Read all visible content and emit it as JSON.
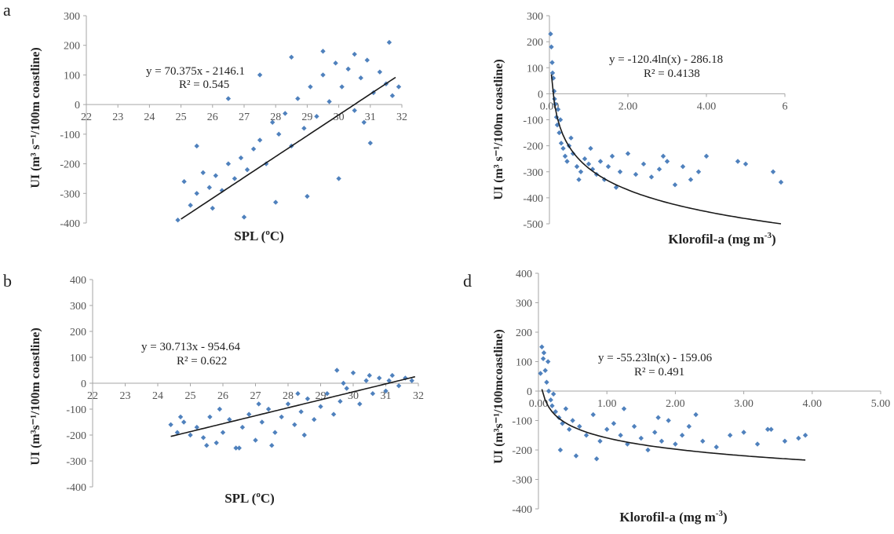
{
  "figure": {
    "panel_letters": [
      "a",
      "b",
      "d"
    ]
  },
  "chart_data": [
    {
      "type": "scatter",
      "panel_letter": "a",
      "xlabel_main": "SPL (",
      "xlabel_unit_sup": "o",
      "xlabel_unit_end": "C)",
      "ylabel": "UI (m³ s⁻¹/100m coastline)",
      "x_ticks": [
        "22",
        "23",
        "24",
        "25",
        "26",
        "27",
        "28",
        "29",
        "30",
        "31",
        "32"
      ],
      "y_ticks": [
        "300",
        "200",
        "100",
        "0",
        "-100",
        "-200",
        "-300",
        "-400"
      ],
      "xlim": [
        22,
        32
      ],
      "ylim": [
        -400,
        300
      ],
      "point_color": "#4f81bd",
      "trendline": {
        "kind": "linear",
        "slope": 70.375,
        "intercept": -2146.1,
        "x_range": [
          25.0,
          31.8
        ]
      },
      "equation": "y = 70.375x - 2146.1",
      "r_squared": "R² = 0.545",
      "series": [
        {
          "x": [
            24.9,
            25.1,
            25.3,
            25.5,
            25.7,
            25.9,
            26.1,
            26.3,
            26.5,
            26.7,
            26.9,
            27.1,
            27.3,
            27.5,
            27.7,
            27.9,
            28.1,
            28.3,
            28.5,
            28.7,
            28.9,
            29.1,
            29.3,
            29.5,
            29.7,
            29.9,
            30.1,
            30.3,
            30.5,
            30.7,
            30.9,
            31.1,
            31.3,
            31.5,
            31.7,
            31.9,
            26.0,
            27.0,
            28.0,
            29.0,
            30.0,
            31.0,
            29.5,
            30.5,
            28.5,
            27.5,
            26.5,
            25.5,
            31.6,
            30.8
          ],
          "y": [
            -390,
            -260,
            -340,
            -300,
            -230,
            -280,
            -240,
            -290,
            -200,
            -250,
            -180,
            -220,
            -150,
            -120,
            -200,
            -60,
            -100,
            -30,
            -140,
            20,
            -80,
            60,
            -40,
            100,
            10,
            140,
            60,
            120,
            -20,
            90,
            150,
            40,
            110,
            70,
            30,
            60,
            -350,
            -380,
            -330,
            -310,
            -250,
            -130,
            180,
            170,
            160,
            100,
            20,
            -140,
            210,
            -60
          ]
        }
      ]
    },
    {
      "type": "scatter",
      "panel_letter": "",
      "xlabel_main": "Klorofil-a (mg m",
      "xlabel_unit_sup": "-3",
      "xlabel_unit_end": ")",
      "ylabel": "UI (m³ s⁻¹/100m coastline)",
      "x_ticks": [
        "0.00",
        "2.00",
        "4.00",
        "6"
      ],
      "y_ticks": [
        "300",
        "200",
        "100",
        "0",
        "-100",
        "-200",
        "-300",
        "-400",
        "-500"
      ],
      "xlim": [
        0,
        6
      ],
      "ylim": [
        -500,
        300
      ],
      "point_color": "#4f81bd",
      "trendline": {
        "kind": "log",
        "a": -120.4,
        "b": -286.18,
        "x_range": [
          0.05,
          5.9
        ]
      },
      "equation": "y = -120.4ln(x) - 286.18",
      "r_squared": "R² = 0.4138",
      "series": [
        {
          "x": [
            0.03,
            0.05,
            0.07,
            0.1,
            0.12,
            0.15,
            0.18,
            0.2,
            0.25,
            0.3,
            0.35,
            0.4,
            0.45,
            0.5,
            0.6,
            0.7,
            0.8,
            0.9,
            1.0,
            1.1,
            1.2,
            1.3,
            1.4,
            1.5,
            1.6,
            1.8,
            2.0,
            2.2,
            2.4,
            2.6,
            2.8,
            3.0,
            3.2,
            3.4,
            3.6,
            3.8,
            4.0,
            4.8,
            5.0,
            5.7,
            5.9,
            0.08,
            0.13,
            0.22,
            0.28,
            0.55,
            0.75,
            1.05,
            1.7,
            2.9
          ],
          "y": [
            230,
            180,
            120,
            60,
            10,
            -40,
            -90,
            -120,
            -150,
            -190,
            -210,
            -240,
            -260,
            -200,
            -230,
            -280,
            -300,
            -250,
            -270,
            -290,
            -310,
            -260,
            -330,
            -280,
            -240,
            -300,
            -230,
            -310,
            -270,
            -320,
            -290,
            -260,
            -350,
            -280,
            -330,
            -300,
            -240,
            -260,
            -270,
            -300,
            -340,
            80,
            -20,
            -60,
            -100,
            -170,
            -330,
            -210,
            -360,
            -240
          ]
        }
      ]
    },
    {
      "type": "scatter",
      "panel_letter": "b",
      "xlabel_main": "SPL (",
      "xlabel_unit_sup": "o",
      "xlabel_unit_end": "C)",
      "ylabel": "UI (m³s⁻¹/100m coastline)",
      "x_ticks": [
        "22",
        "23",
        "24",
        "25",
        "26",
        "27",
        "28",
        "29",
        "30",
        "31",
        "32"
      ],
      "y_ticks": [
        "400",
        "300",
        "200",
        "100",
        "0",
        "-100",
        "-200",
        "-300",
        "-400"
      ],
      "xlim": [
        22,
        32
      ],
      "ylim": [
        -400,
        400
      ],
      "point_color": "#4f81bd",
      "trendline": {
        "kind": "linear",
        "slope": 30.713,
        "intercept": -954.64,
        "x_range": [
          24.4,
          31.9
        ]
      },
      "equation": "y = 30.713x - 954.64",
      "r_squared": "R² = 0.622",
      "series": [
        {
          "x": [
            24.4,
            24.6,
            24.8,
            25.0,
            25.2,
            25.4,
            25.6,
            25.8,
            26.0,
            26.2,
            26.4,
            26.6,
            26.8,
            27.0,
            27.2,
            27.4,
            27.6,
            27.8,
            28.0,
            28.2,
            28.4,
            28.6,
            28.8,
            29.0,
            29.2,
            29.4,
            29.6,
            29.8,
            30.0,
            30.2,
            30.4,
            30.6,
            30.8,
            31.0,
            31.2,
            31.4,
            31.6,
            31.8,
            25.5,
            26.5,
            27.5,
            28.5,
            29.5,
            30.5,
            24.7,
            25.9,
            27.1,
            28.3,
            29.7,
            31.1
          ],
          "y": [
            -160,
            -190,
            -150,
            -200,
            -170,
            -210,
            -130,
            -230,
            -190,
            -140,
            -250,
            -170,
            -120,
            -220,
            -150,
            -100,
            -190,
            -130,
            -80,
            -160,
            -110,
            -60,
            -140,
            -90,
            -40,
            -120,
            -70,
            -20,
            40,
            -80,
            10,
            -40,
            20,
            -30,
            30,
            -10,
            20,
            10,
            -240,
            -250,
            -240,
            -200,
            50,
            30,
            -130,
            -100,
            -80,
            -40,
            0,
            10
          ]
        }
      ]
    },
    {
      "type": "scatter",
      "panel_letter": "d",
      "xlabel_main": "Klorofil-a (mg m",
      "xlabel_unit_sup": "-3",
      "xlabel_unit_end": ")",
      "ylabel": "UI (m³s⁻¹/100mcoastline)",
      "x_ticks": [
        "0.00",
        "1.00",
        "2.00",
        "3.00",
        "4.00",
        "5.00"
      ],
      "y_ticks": [
        "400",
        "300",
        "200",
        "100",
        "0",
        "-100",
        "-200",
        "-300",
        "-400"
      ],
      "xlim": [
        0,
        5
      ],
      "ylim": [
        -400,
        400
      ],
      "point_color": "#4f81bd",
      "trendline": {
        "kind": "log",
        "a": -55.23,
        "b": -159.06,
        "x_range": [
          0.05,
          3.9
        ]
      },
      "equation": "y = -55.23ln(x) - 159.06",
      "r_squared": "R² = 0.491",
      "series": [
        {
          "x": [
            0.03,
            0.05,
            0.07,
            0.1,
            0.12,
            0.15,
            0.18,
            0.2,
            0.25,
            0.3,
            0.35,
            0.4,
            0.45,
            0.5,
            0.6,
            0.7,
            0.8,
            0.9,
            1.0,
            1.1,
            1.2,
            1.3,
            1.4,
            1.5,
            1.6,
            1.7,
            1.8,
            1.9,
            2.0,
            2.1,
            2.2,
            2.4,
            2.6,
            2.8,
            3.0,
            3.2,
            3.4,
            3.6,
            3.8,
            3.9,
            0.08,
            0.14,
            0.22,
            0.32,
            0.55,
            0.85,
            1.25,
            1.75,
            2.3,
            3.35
          ],
          "y": [
            60,
            150,
            110,
            70,
            30,
            0,
            -30,
            -50,
            -70,
            -90,
            -110,
            -60,
            -130,
            -100,
            -120,
            -150,
            -80,
            -170,
            -130,
            -110,
            -150,
            -180,
            -120,
            -160,
            -200,
            -140,
            -170,
            -100,
            -180,
            -150,
            -120,
            -170,
            -190,
            -150,
            -140,
            -180,
            -130,
            -170,
            -160,
            -150,
            130,
            100,
            -10,
            -200,
            -220,
            -230,
            -60,
            -90,
            -80,
            -130
          ]
        }
      ]
    }
  ]
}
